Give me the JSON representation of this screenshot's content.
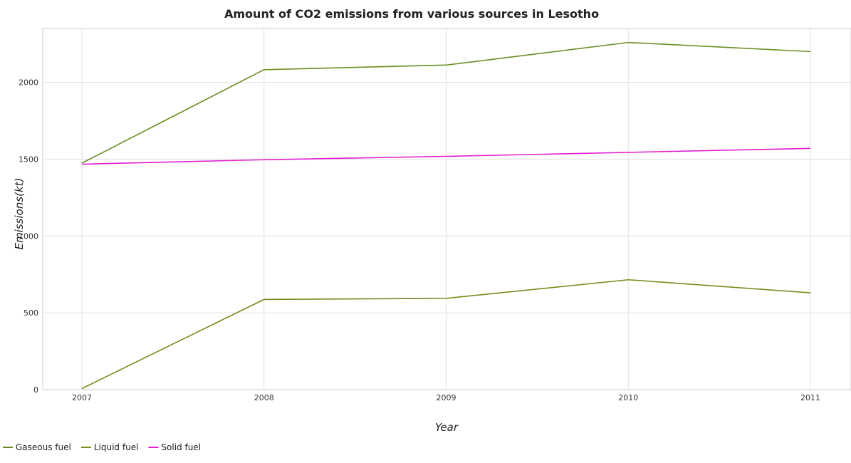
{
  "chart_data": {
    "type": "line",
    "title": "Amount of CO2 emissions from various sources in Lesotho",
    "xlabel": "Year",
    "ylabel": "Emissions(kt)",
    "categories": [
      "2007",
      "2008",
      "2009",
      "2010",
      "2011"
    ],
    "ylim": [
      0,
      2350
    ],
    "yticks": [
      0,
      500,
      1000,
      1500,
      2000
    ],
    "ytick_labels": [
      "0",
      "500",
      "1000",
      "1500",
      "2000"
    ],
    "grid": true,
    "legend_position": "bottom-left",
    "series": [
      {
        "name": "Gaseous fuel",
        "color": "#6b8e23",
        "values": [
          1474,
          2082,
          2112,
          2259,
          2200
        ]
      },
      {
        "name": "Liquid fuel",
        "color": "#7c8a1c",
        "values": [
          7,
          587,
          594,
          715,
          630
        ]
      },
      {
        "name": "Solid fuel",
        "color": "#e020d0",
        "values": [
          1467,
          1496,
          1518,
          1544,
          1570
        ]
      }
    ]
  }
}
